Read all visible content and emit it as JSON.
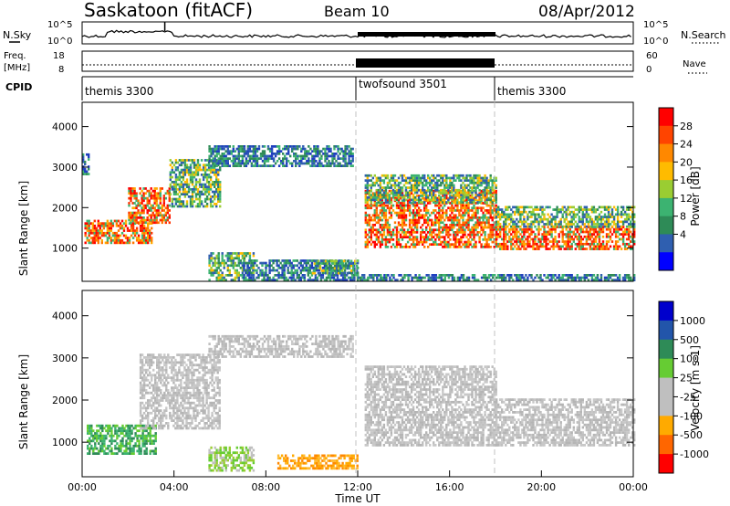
{
  "header": {
    "station": "Saskatoon (fitACF)",
    "beam": "Beam 10",
    "date": "08/Apr/2012"
  },
  "strip_panels": {
    "nsky": {
      "left_label": "N.Sky",
      "right_label": "N.Search",
      "left_ticks": [
        "10^5",
        "10^0"
      ],
      "right_ticks": [
        "10^5",
        "10^0"
      ]
    },
    "freq": {
      "left_label_line1": "Freq.",
      "left_label_line2": "[MHz]",
      "left_ticks": [
        "18",
        "8"
      ],
      "right_label": "Nave",
      "right_ticks": [
        "60",
        "0"
      ]
    },
    "cpid": {
      "label": "CPID",
      "segments": [
        {
          "name": "themis 3300",
          "start_hour": 0
        },
        {
          "name": "twofsound 3501",
          "start_hour": 12
        },
        {
          "name": "themis 3300",
          "start_hour": 18
        }
      ]
    }
  },
  "colorbars": {
    "power": {
      "label": "Power [dB]",
      "ticks": [
        "28",
        "24",
        "20",
        "16",
        "12",
        "8",
        "4"
      ],
      "colors": [
        "#ff0000",
        "#ff4400",
        "#ff8800",
        "#ffbb00",
        "#9acd32",
        "#3cb371",
        "#2e8b57",
        "#2f5fb0",
        "#0000ff"
      ]
    },
    "velocity": {
      "label": "Velocity [m s-1]",
      "ticks": [
        "1000",
        "500",
        "100",
        "25",
        "-25",
        "-100",
        "-500",
        "-1000"
      ],
      "colors": [
        "#0000cc",
        "#2255aa",
        "#2e8b57",
        "#66cc33",
        "#bfbfbf",
        "#bfbfbf",
        "#ffaa00",
        "#ff6600",
        "#ff0000"
      ]
    }
  },
  "chart_data": [
    {
      "type": "heatmap",
      "title": "",
      "parameter": "Power",
      "ylabel": "Slant Range [km]",
      "xlabel": "",
      "ylim": [
        180,
        4600
      ],
      "xlim_hours": [
        0,
        24
      ],
      "yticks": [
        1000,
        2000,
        3000,
        4000
      ],
      "echo_regions": [
        {
          "t0": 0.0,
          "t1": 0.3,
          "r0": 2800,
          "r1": 3300,
          "level": "low"
        },
        {
          "t0": 0.1,
          "t1": 3.0,
          "r0": 1100,
          "r1": 1700,
          "level": "high"
        },
        {
          "t0": 2.0,
          "t1": 3.8,
          "r0": 1600,
          "r1": 2500,
          "level": "high"
        },
        {
          "t0": 3.8,
          "t1": 6.0,
          "r0": 2000,
          "r1": 3200,
          "level": "mid"
        },
        {
          "t0": 5.5,
          "t1": 11.8,
          "r0": 3000,
          "r1": 3500,
          "level": "low"
        },
        {
          "t0": 5.5,
          "t1": 7.5,
          "r0": 180,
          "r1": 900,
          "level": "mid"
        },
        {
          "t0": 7.0,
          "t1": 12.0,
          "r0": 180,
          "r1": 700,
          "level": "low"
        },
        {
          "t0": 10.0,
          "t1": 12.0,
          "r0": 350,
          "r1": 700,
          "level": "mid"
        },
        {
          "t0": 12.3,
          "t1": 18.0,
          "r0": 1000,
          "r1": 2400,
          "level": "high"
        },
        {
          "t0": 12.3,
          "t1": 18.0,
          "r0": 2100,
          "r1": 2800,
          "level": "mid"
        },
        {
          "t0": 18.0,
          "t1": 24.0,
          "r0": 950,
          "r1": 1500,
          "level": "high"
        },
        {
          "t0": 18.0,
          "t1": 24.0,
          "r0": 1500,
          "r1": 2000,
          "level": "mid"
        },
        {
          "t0": 12.0,
          "t1": 24.0,
          "r0": 180,
          "r1": 350,
          "level": "low"
        }
      ]
    },
    {
      "type": "heatmap",
      "title": "",
      "parameter": "Velocity",
      "ylabel": "Slant Range [km]",
      "xlabel": "Time UT",
      "ylim": [
        180,
        4600
      ],
      "xlim_hours": [
        0,
        24
      ],
      "yticks": [
        1000,
        2000,
        3000,
        4000
      ],
      "xticks": [
        "00:00",
        "04:00",
        "08:00",
        "12:00",
        "16:00",
        "20:00",
        "00:00"
      ],
      "echo_regions": [
        {
          "t0": 0.2,
          "t1": 3.2,
          "r0": 700,
          "r1": 1400,
          "class": "positive-100-500"
        },
        {
          "t0": 2.5,
          "t1": 6.0,
          "r0": 1300,
          "r1": 3100,
          "class": "ground-scatter"
        },
        {
          "t0": 5.5,
          "t1": 11.8,
          "r0": 3000,
          "r1": 3500,
          "class": "ground-scatter"
        },
        {
          "t0": 5.5,
          "t1": 7.5,
          "r0": 300,
          "r1": 900,
          "class": "positive-25-100"
        },
        {
          "t0": 8.5,
          "t1": 12.0,
          "r0": 350,
          "r1": 700,
          "class": "negative-100-500"
        },
        {
          "t0": 12.3,
          "t1": 18.0,
          "r0": 900,
          "r1": 2800,
          "class": "ground-scatter"
        },
        {
          "t0": 18.0,
          "t1": 24.0,
          "r0": 900,
          "r1": 2000,
          "class": "ground-scatter"
        }
      ]
    }
  ]
}
